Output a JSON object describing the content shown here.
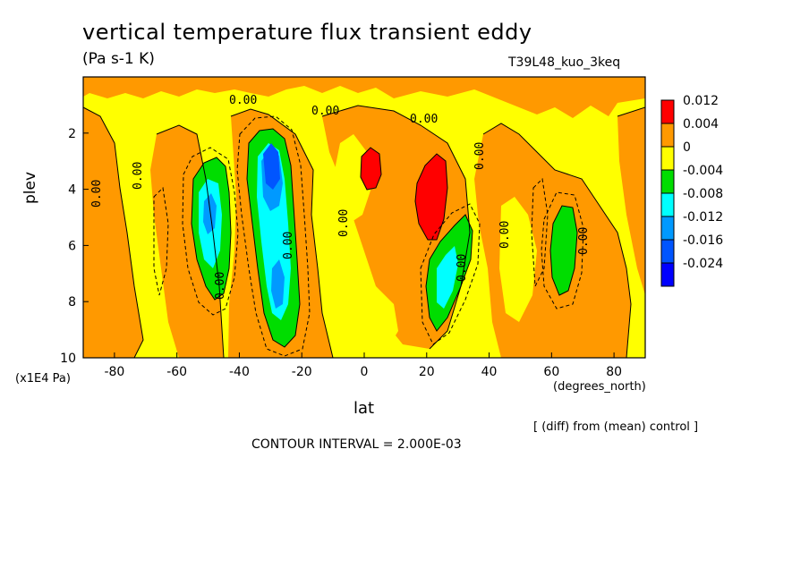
{
  "header": {
    "title": "vertical temperature flux transient eddy",
    "units": "(Pa s-1 K)",
    "run_name": "T39L48_kuo_3keq"
  },
  "axes": {
    "ylabel": "plev",
    "yunits": "(x1E4 Pa)",
    "xlabel": "lat",
    "xunits": "(degrees_north)"
  },
  "footer": {
    "diff_note": "[ (diff) from (mean) control ]",
    "contour_interval": "CONTOUR INTERVAL = 2.000E-03"
  },
  "chart_data": {
    "type": "contour",
    "title": "vertical temperature flux transient eddy",
    "units": "(Pa s-1 K)",
    "xlabel": "lat",
    "ylabel": "plev",
    "x_range": [
      -90,
      90
    ],
    "y_range": [
      10,
      0
    ],
    "x_ticks": [
      -80,
      -60,
      -40,
      -20,
      0,
      20,
      40,
      60,
      80
    ],
    "y_ticks": [
      2,
      4,
      6,
      8,
      10
    ],
    "x_tick_labels": [
      "-80",
      "-60",
      "-40",
      "-20",
      "0",
      "20",
      "40",
      "60",
      "80"
    ],
    "y_tick_labels": [
      "2",
      "4",
      "6",
      "8",
      "10"
    ],
    "contour_labels": [
      "0.00",
      "0.00",
      "0.00",
      "0.00",
      "0.00",
      "0.00",
      "0.00",
      "0.00",
      "0.00",
      "0.00",
      "0.00",
      "0.00"
    ],
    "colorbar": {
      "labels": [
        "0.012",
        "0.004",
        "0",
        "-0.004",
        "-0.008",
        "-0.012",
        "-0.016",
        "-0.024"
      ],
      "colors": [
        "#ff0000",
        "#ff9900",
        "#ffff00",
        "#00dd00",
        "#00ffff",
        "#0099ff",
        "#0055ff",
        "#0000ff"
      ]
    },
    "regions": [
      {
        "name": "positive-max-1",
        "center": [
          2,
          3.8
        ],
        "value_range": [
          0.004,
          0.012
        ]
      },
      {
        "name": "positive-max-2",
        "center": [
          22,
          4.5
        ],
        "value_range": [
          0.004,
          0.012
        ]
      },
      {
        "name": "negative-min-1",
        "center": [
          -30,
          4.5
        ],
        "value_range": [
          -0.024,
          -0.016
        ]
      },
      {
        "name": "negative-min-2",
        "center": [
          -48,
          5
        ],
        "value_range": [
          -0.012,
          -0.008
        ]
      },
      {
        "name": "negative-min-3",
        "center": [
          28,
          7.5
        ],
        "value_range": [
          -0.012,
          -0.008
        ]
      },
      {
        "name": "negative-min-4",
        "center": [
          62,
          6.5
        ],
        "value_range": [
          -0.008,
          -0.004
        ]
      }
    ]
  }
}
